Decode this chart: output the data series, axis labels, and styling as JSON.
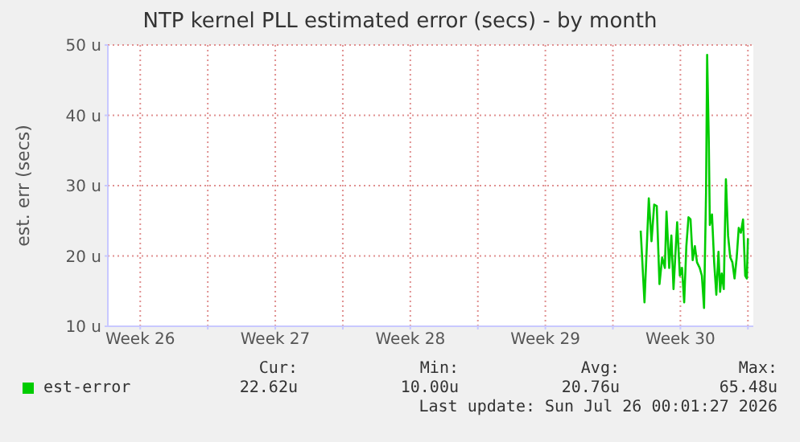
{
  "chart_data": {
    "type": "line",
    "title": "NTP kernel PLL estimated error (secs) - by month",
    "ylabel": "est. err (secs)",
    "x": [
      "2026-07-20T10:36",
      "2026-07-20T15:19",
      "2026-07-20T20:41",
      "2026-07-21T00:03",
      "2026-07-21T03:24",
      "2026-07-21T06:36",
      "2026-07-21T09:58",
      "2026-07-21T13:19",
      "2026-07-21T16:41",
      "2026-07-21T18:42",
      "2026-07-21T22:03",
      "2026-07-22T00:45",
      "2026-07-22T03:26",
      "2026-07-22T05:57",
      "2026-07-22T07:58",
      "2026-07-22T11:20",
      "2026-07-22T14:01",
      "2026-07-22T16:42",
      "2026-07-22T19:24",
      "2026-07-22T22:05",
      "2026-07-23T00:36",
      "2026-07-23T03:17",
      "2026-07-23T05:59",
      "2026-07-23T08:40",
      "2026-07-23T12:01",
      "2026-07-23T14:43",
      "2026-07-23T17:24",
      "2026-07-23T19:55",
      "2026-07-23T21:16",
      "2026-07-23T23:17",
      "2026-07-24T00:37",
      "2026-07-24T03:19",
      "2026-07-24T06:00",
      "2026-07-24T08:41",
      "2026-07-24T11:23",
      "2026-07-24T13:24",
      "2026-07-24T15:24",
      "2026-07-24T17:56",
      "2026-07-24T20:37",
      "2026-07-24T23:18",
      "2026-07-25T02:00",
      "2026-07-25T04:41",
      "2026-07-25T07:22",
      "2026-07-25T10:03",
      "2026-07-25T12:35",
      "2026-07-25T15:16",
      "2026-07-25T17:57",
      "2026-07-25T20:38",
      "2026-07-25T22:39",
      "2026-07-26T00:00"
    ],
    "series": [
      {
        "name": "est-error",
        "color": "#00cc00",
        "values": [
          23.6,
          13.4,
          28.2,
          22.1,
          27.3,
          27.1,
          16.0,
          19.8,
          18.3,
          26.3,
          18.3,
          22.9,
          15.3,
          20.6,
          24.8,
          17.2,
          18.3,
          13.4,
          21.4,
          25.5,
          25.2,
          19.4,
          21.4,
          19.1,
          18.3,
          17.2,
          12.6,
          29.0,
          48.6,
          36.6,
          24.4,
          25.9,
          19.1,
          14.5,
          20.6,
          14.9,
          17.5,
          15.3,
          30.9,
          22.9,
          19.8,
          19.1,
          16.8,
          19.8,
          24.0,
          23.3,
          25.2,
          17.2,
          16.8,
          22.5
        ]
      }
    ],
    "xlim": [
      "2026-06-22T19:41",
      "2026-07-26T06:43"
    ],
    "xticks": [
      {
        "value": "2026-06-24T12:00",
        "label": "Week 26"
      },
      {
        "value": "2026-06-28",
        "label": null
      },
      {
        "value": "2026-07-01T12:00",
        "label": "Week 27"
      },
      {
        "value": "2026-07-05",
        "label": null
      },
      {
        "value": "2026-07-08T12:00",
        "label": "Week 28"
      },
      {
        "value": "2026-07-12",
        "label": null
      },
      {
        "value": "2026-07-15T12:00",
        "label": "Week 29"
      },
      {
        "value": "2026-07-19",
        "label": null
      },
      {
        "value": "2026-07-22T12:00",
        "label": "Week 30"
      },
      {
        "value": "2026-07-26",
        "label": null
      }
    ],
    "ylim": [
      10,
      50
    ],
    "yticks": [
      {
        "value": 10,
        "label": "10 u"
      },
      {
        "value": 20,
        "label": "20 u"
      },
      {
        "value": 30,
        "label": "30 u"
      },
      {
        "value": 40,
        "label": "40 u"
      },
      {
        "value": 50,
        "label": "50 u"
      }
    ],
    "grid": true,
    "legend": "bottom",
    "marker": "none",
    "line_style": "solid",
    "annotations": [
      "Cur:",
      "22.62u",
      "Min:",
      "10.00u",
      "Avg:",
      "20.76u",
      "Max:",
      "65.48u",
      "Last update: Sun Jul 26 00:01:27 2026"
    ]
  }
}
